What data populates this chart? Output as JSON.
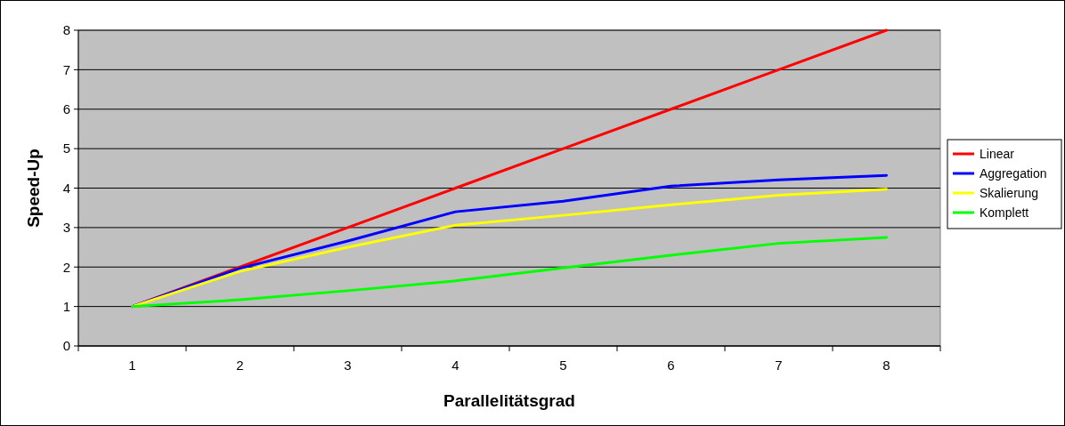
{
  "chart_data": {
    "type": "line",
    "xlabel": "Parallelitätsgrad",
    "ylabel": "Speed-Up",
    "categories": [
      "1",
      "2",
      "3",
      "4",
      "5",
      "6",
      "7",
      "8"
    ],
    "series": [
      {
        "name": "Linear",
        "color": "#ff0000",
        "values": [
          1,
          2,
          3,
          4,
          5,
          6,
          7,
          8
        ]
      },
      {
        "name": "Aggregation",
        "color": "#0000ff",
        "values": [
          1,
          1.97,
          2.66,
          3.4,
          3.67,
          4.05,
          4.21,
          4.32
        ]
      },
      {
        "name": "Skalierung",
        "color": "#ffff00",
        "values": [
          1,
          1.89,
          2.5,
          3.06,
          3.31,
          3.58,
          3.82,
          3.97
        ]
      },
      {
        "name": "Komplett",
        "color": "#00ff00",
        "values": [
          1,
          1.17,
          1.4,
          1.65,
          1.98,
          2.3,
          2.6,
          2.75
        ]
      }
    ],
    "ylim": [
      0,
      8
    ],
    "yticks": [
      0,
      1,
      2,
      3,
      4,
      5,
      6,
      7,
      8
    ],
    "grid": "y",
    "legend": "right",
    "marker": "none",
    "line_style": "solid"
  }
}
